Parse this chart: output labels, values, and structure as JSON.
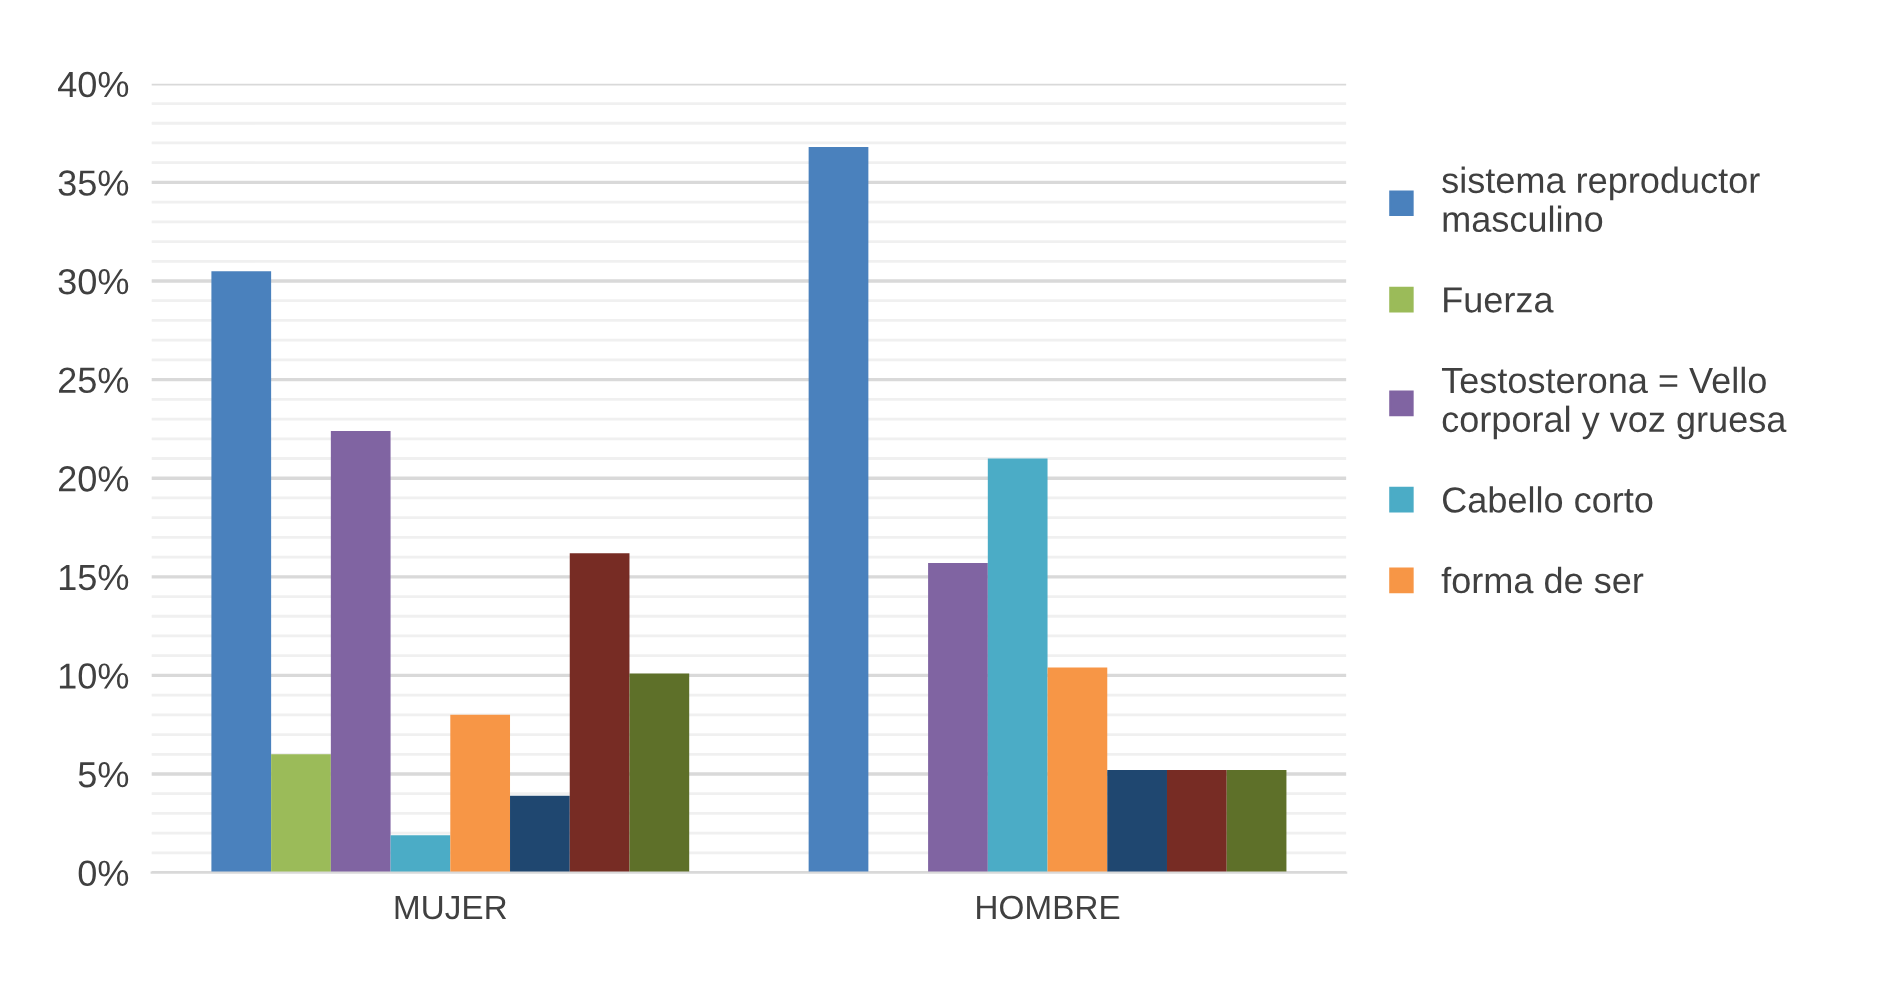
{
  "chart_data": {
    "type": "bar",
    "categories": [
      "MUJER",
      "HOMBRE"
    ],
    "series": [
      {
        "name": "sistema reproductor\nmasculino",
        "color": "#4a81bd",
        "values": [
          30.5,
          36.8
        ]
      },
      {
        "name": "Fuerza",
        "color": "#9bbb59",
        "values": [
          6.0,
          0
        ]
      },
      {
        "name": "Testosterona = Vello\ncorporal y voz gruesa",
        "color": "#8064a2",
        "values": [
          22.4,
          15.7
        ]
      },
      {
        "name": "Cabello corto",
        "color": "#4bacc6",
        "values": [
          1.9,
          21.0
        ]
      },
      {
        "name": "forma de ser",
        "color": "#f79646",
        "values": [
          8.0,
          10.4
        ]
      },
      {
        "color": "#1f4770",
        "values": [
          3.9,
          5.2
        ]
      },
      {
        "color": "#772c24",
        "values": [
          16.2,
          5.2
        ]
      },
      {
        "color": "#5e7029",
        "values": [
          10.1,
          5.2
        ]
      }
    ],
    "ylim": [
      0,
      40
    ],
    "yticks": [
      {
        "value": 0,
        "label": "0%"
      },
      {
        "value": 5,
        "label": "5%"
      },
      {
        "value": 10,
        "label": "10%"
      },
      {
        "value": 15,
        "label": "15%"
      },
      {
        "value": 20,
        "label": "20%"
      },
      {
        "value": 25,
        "label": "25%"
      },
      {
        "value": 30,
        "label": "30%"
      },
      {
        "value": 35,
        "label": "35%"
      },
      {
        "value": 40,
        "label": "40%"
      }
    ],
    "grid": "y",
    "legend": "right"
  }
}
